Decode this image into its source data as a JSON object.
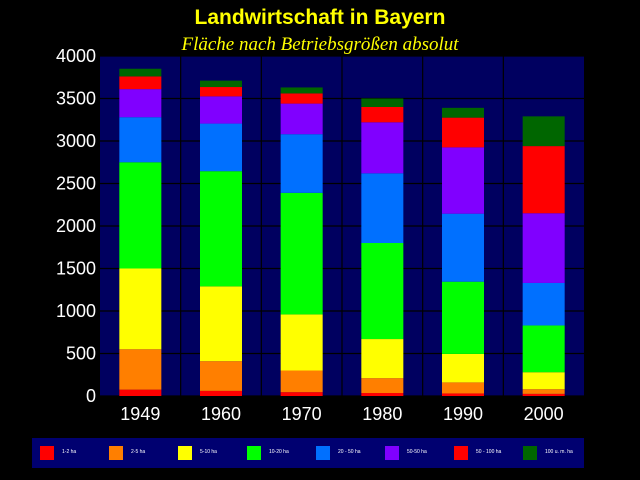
{
  "chart_data": {
    "type": "bar",
    "stacked": true,
    "title": "Landwirtschaft in Bayern",
    "subtitle": "Fläche nach Betriebsgrößen absolut",
    "categories": [
      "1949",
      "1960",
      "1970",
      "1980",
      "1990",
      "2000"
    ],
    "ylim": [
      0,
      4000
    ],
    "yticks": [
      0,
      500,
      1000,
      1500,
      2000,
      2500,
      3000,
      3500,
      4000
    ],
    "grid": true,
    "legend_position": "bottom",
    "series": [
      {
        "name": "1-2 ha",
        "color": "#ff0000",
        "values": [
          75,
          60,
          45,
          35,
          30,
          25
        ]
      },
      {
        "name": "2-5 ha",
        "color": "#ff7f00",
        "values": [
          475,
          350,
          255,
          175,
          130,
          55
        ]
      },
      {
        "name": "5-10 ha",
        "color": "#ffff00",
        "values": [
          950,
          880,
          660,
          460,
          335,
          200
        ]
      },
      {
        "name": "10-20 ha",
        "color": "#00ff00",
        "values": [
          1250,
          1355,
          1430,
          1130,
          850,
          550
        ]
      },
      {
        "name": "20 - 50 ha",
        "color": "#0070ff",
        "values": [
          530,
          560,
          690,
          820,
          800,
          500
        ]
      },
      {
        "name": "50-50 ha",
        "color": "#8000ff",
        "values": [
          330,
          320,
          360,
          600,
          780,
          820
        ]
      },
      {
        "name": "50 - 100 ha",
        "color": "#ff0000",
        "values": [
          150,
          110,
          120,
          180,
          350,
          790
        ]
      },
      {
        "name": "100 u. m. ha",
        "color": "#006600",
        "values": [
          90,
          75,
          70,
          100,
          115,
          350
        ]
      }
    ]
  },
  "colors": {
    "background": "#000000",
    "plot_background": "#000060",
    "gridline": "#000000",
    "title": "#ffff00",
    "axis_text": "#ffffff",
    "legend_background": "#000070"
  }
}
